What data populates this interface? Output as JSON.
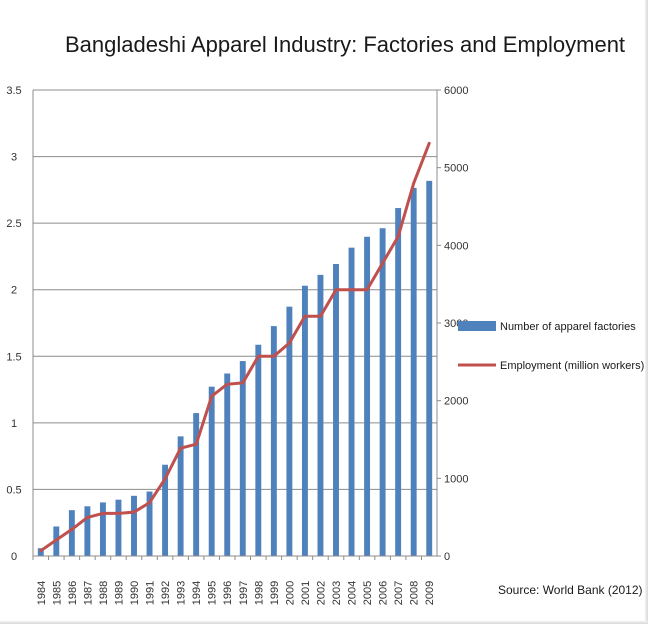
{
  "chart_data": {
    "type": "bar",
    "title": "Bangladeshi Apparel Industry: Factories and Employment",
    "categories": [
      "1984",
      "1985",
      "1986",
      "1987",
      "1988",
      "1989",
      "1990",
      "1991",
      "1992",
      "1993",
      "1994",
      "1995",
      "1996",
      "1997",
      "1998",
      "1999",
      "2000",
      "2001",
      "2002",
      "2003",
      "2004",
      "2005",
      "2006",
      "2007",
      "2008",
      "2009"
    ],
    "series": [
      {
        "name": "Number of apparel factories",
        "type": "bar",
        "axis": "right",
        "color": "#4f81bd",
        "values": [
          100,
          380,
          590,
          640,
          690,
          725,
          775,
          830,
          1175,
          1540,
          1840,
          2180,
          2350,
          2510,
          2720,
          2960,
          3210,
          3480,
          3620,
          3760,
          3970,
          4110,
          4220,
          4480,
          4740,
          4830
        ]
      },
      {
        "name": "Employment (million workers)",
        "type": "line",
        "axis": "left",
        "color": "#c0504d",
        "values": [
          0.04,
          0.12,
          0.2,
          0.29,
          0.32,
          0.32,
          0.33,
          0.4,
          0.58,
          0.81,
          0.84,
          1.2,
          1.29,
          1.3,
          1.5,
          1.5,
          1.6,
          1.8,
          1.8,
          2.0,
          2.0,
          2.0,
          2.2,
          2.4,
          2.8,
          3.1
        ]
      }
    ],
    "y_left": {
      "min": 0,
      "max": 3.5,
      "ticks": [
        "0",
        "0.5",
        "1",
        "1.5",
        "2",
        "2.5",
        "3",
        "3.5"
      ]
    },
    "y_right": {
      "min": 0,
      "max": 6000,
      "ticks": [
        "0",
        "1000",
        "2000",
        "3000",
        "4000",
        "5000",
        "6000"
      ]
    },
    "grid": true,
    "legend_position": "right",
    "annotation": "Source: World Bank (2012)"
  }
}
